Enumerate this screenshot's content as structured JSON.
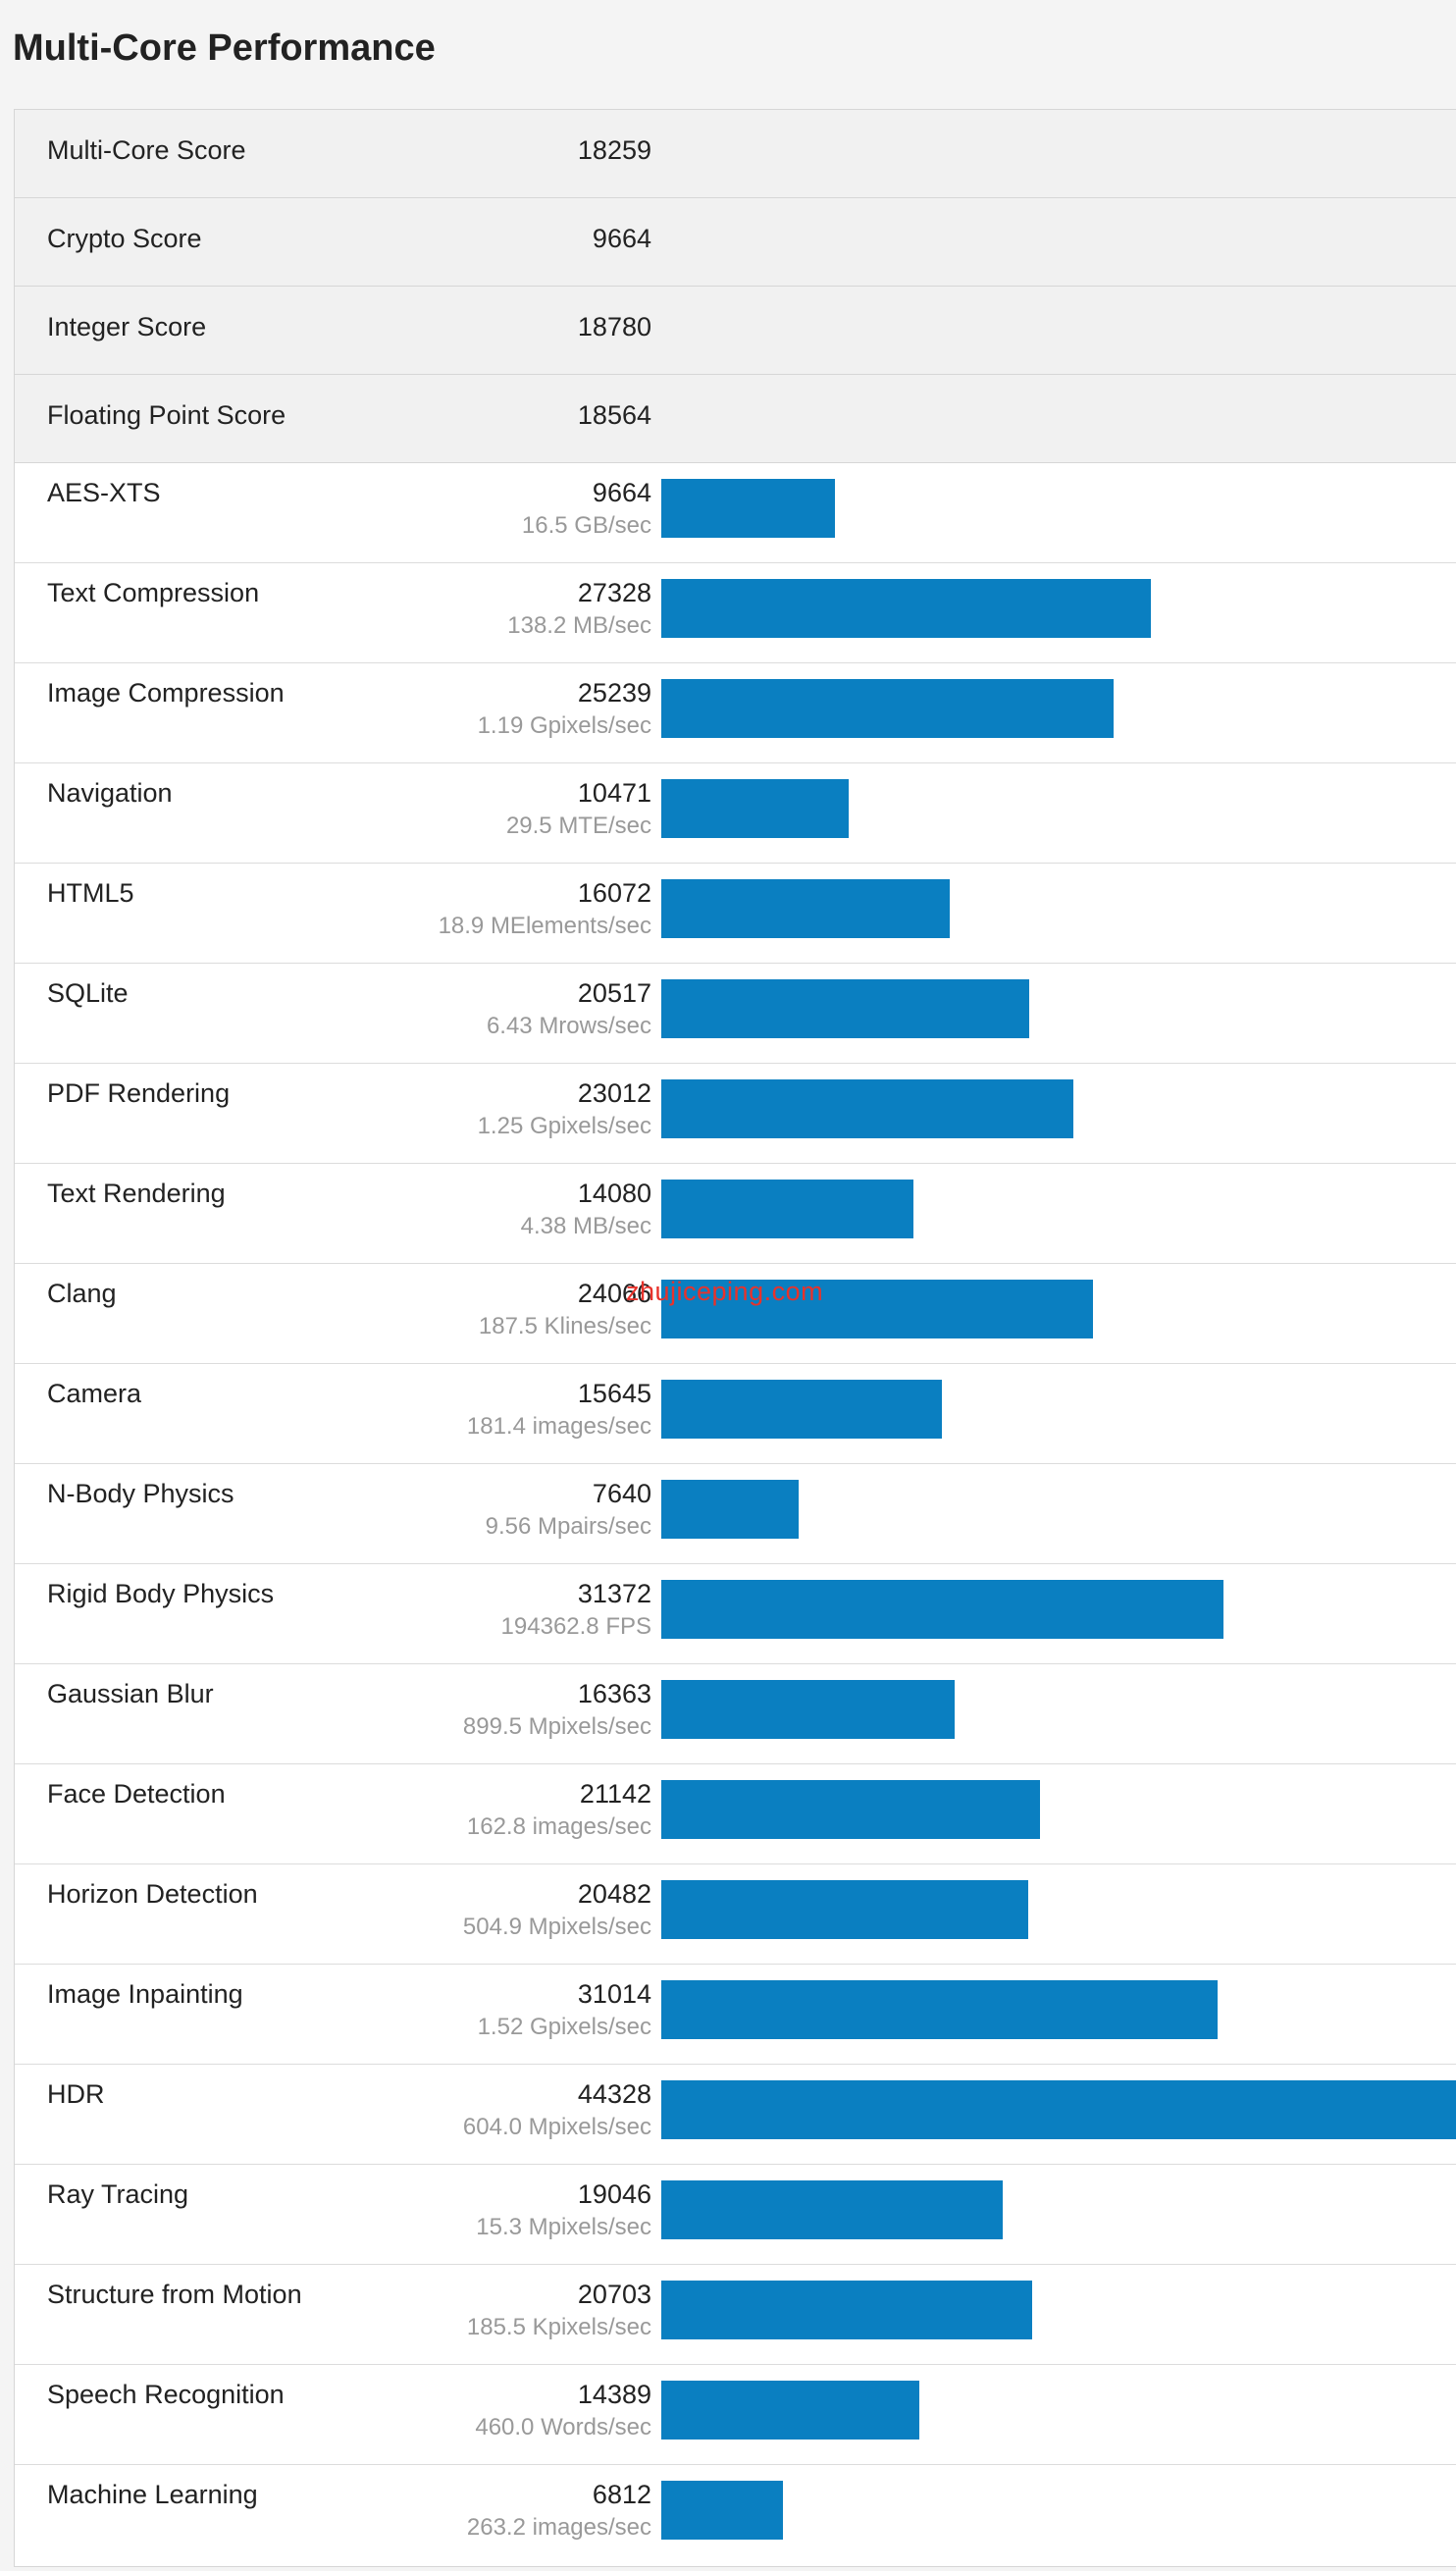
{
  "page": {
    "title": "Multi-Core Performance",
    "watermark": "zhujiceping.com"
  },
  "colors": {
    "bar": "#0a7fc1",
    "watermark": "#e8322b"
  },
  "summary": [
    {
      "name": "Multi-Core Score",
      "score": "18259"
    },
    {
      "name": "Crypto Score",
      "score": "9664"
    },
    {
      "name": "Integer Score",
      "score": "18780"
    },
    {
      "name": "Floating Point Score",
      "score": "18564"
    }
  ],
  "bar_max": 44328,
  "benchmarks": [
    {
      "name": "AES-XTS",
      "score": 9664,
      "rate": "16.5 GB/sec"
    },
    {
      "name": "Text Compression",
      "score": 27328,
      "rate": "138.2 MB/sec"
    },
    {
      "name": "Image Compression",
      "score": 25239,
      "rate": "1.19 Gpixels/sec"
    },
    {
      "name": "Navigation",
      "score": 10471,
      "rate": "29.5 MTE/sec"
    },
    {
      "name": "HTML5",
      "score": 16072,
      "rate": "18.9 MElements/sec"
    },
    {
      "name": "SQLite",
      "score": 20517,
      "rate": "6.43 Mrows/sec"
    },
    {
      "name": "PDF Rendering",
      "score": 23012,
      "rate": "1.25 Gpixels/sec"
    },
    {
      "name": "Text Rendering",
      "score": 14080,
      "rate": "4.38 MB/sec"
    },
    {
      "name": "Clang",
      "score": 24066,
      "rate": "187.5 Klines/sec"
    },
    {
      "name": "Camera",
      "score": 15645,
      "rate": "181.4 images/sec"
    },
    {
      "name": "N-Body Physics",
      "score": 7640,
      "rate": "9.56 Mpairs/sec"
    },
    {
      "name": "Rigid Body Physics",
      "score": 31372,
      "rate": "194362.8 FPS"
    },
    {
      "name": "Gaussian Blur",
      "score": 16363,
      "rate": "899.5 Mpixels/sec"
    },
    {
      "name": "Face Detection",
      "score": 21142,
      "rate": "162.8 images/sec"
    },
    {
      "name": "Horizon Detection",
      "score": 20482,
      "rate": "504.9 Mpixels/sec"
    },
    {
      "name": "Image Inpainting",
      "score": 31014,
      "rate": "1.52 Gpixels/sec"
    },
    {
      "name": "HDR",
      "score": 44328,
      "rate": "604.0 Mpixels/sec"
    },
    {
      "name": "Ray Tracing",
      "score": 19046,
      "rate": "15.3 Mpixels/sec"
    },
    {
      "name": "Structure from Motion",
      "score": 20703,
      "rate": "185.5 Kpixels/sec"
    },
    {
      "name": "Speech Recognition",
      "score": 14389,
      "rate": "460.0 Words/sec"
    },
    {
      "name": "Machine Learning",
      "score": 6812,
      "rate": "263.2 images/sec"
    }
  ]
}
